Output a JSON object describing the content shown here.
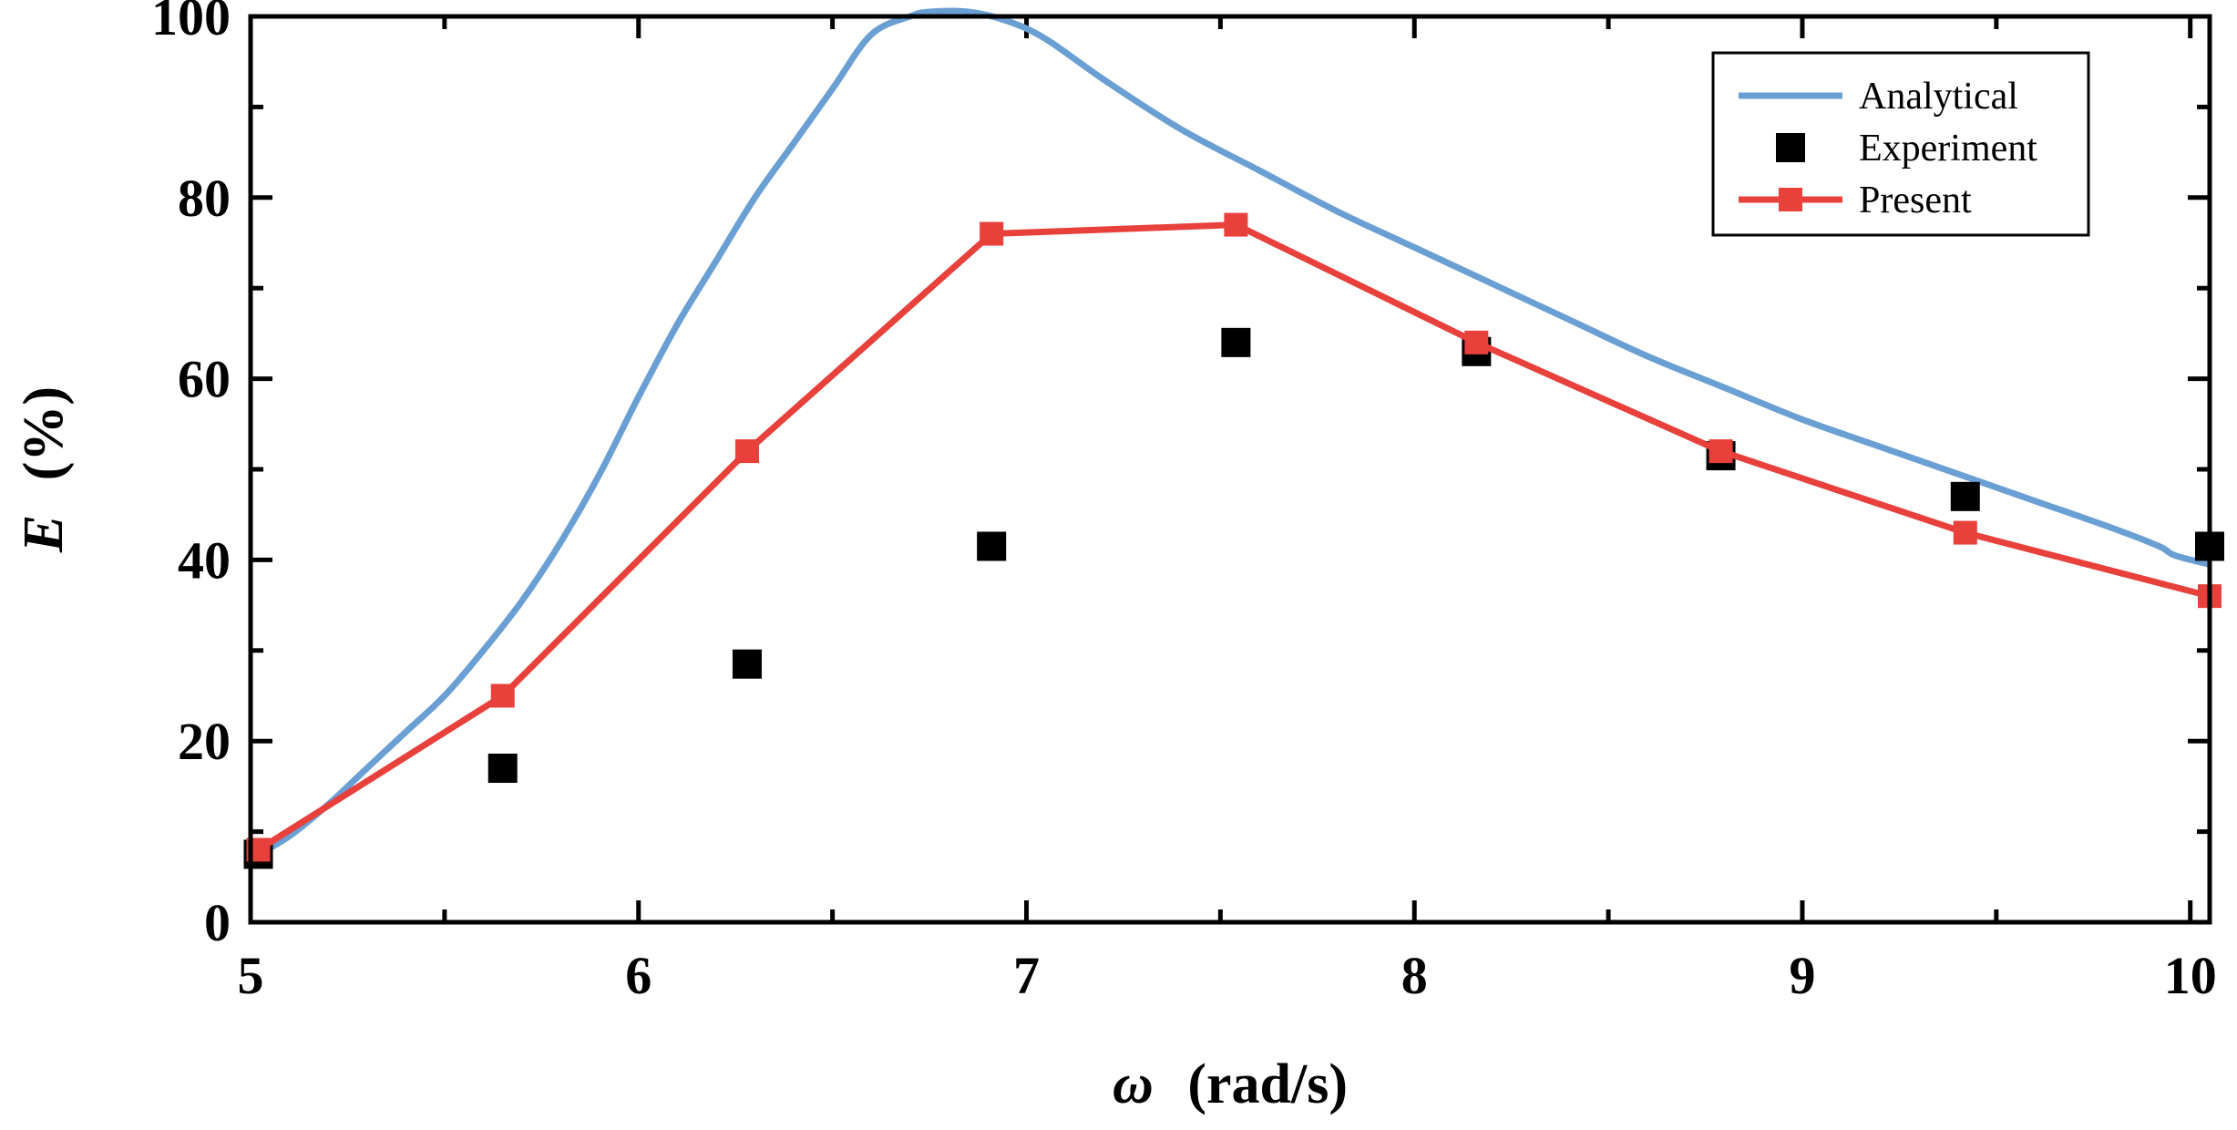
{
  "chart_data": {
    "type": "line",
    "xlabel_symbol": "ω",
    "xlabel_unit": "(rad/s)",
    "ylabel_symbol": "E",
    "ylabel_unit": "(%)",
    "xlim": [
      5,
      10.05
    ],
    "ylim": [
      0,
      100
    ],
    "xticks": [
      5,
      6,
      7,
      8,
      9,
      10
    ],
    "yticks": [
      0,
      20,
      40,
      60,
      80,
      100
    ],
    "grid": false,
    "legend_position": "top-right",
    "colors": {
      "analytical": "#6a9fd4",
      "experiment": "#000000",
      "present": "#e8403a"
    },
    "series": [
      {
        "name": "Analytical",
        "style": "line",
        "x": [
          5.0,
          5.1,
          5.2,
          5.3,
          5.4,
          5.5,
          5.6,
          5.7,
          5.8,
          5.9,
          6.0,
          6.1,
          6.2,
          6.3,
          6.4,
          6.5,
          6.6,
          6.7,
          6.75,
          6.85,
          6.95,
          7.05,
          7.2,
          7.4,
          7.6,
          7.8,
          8.0,
          8.2,
          8.4,
          8.6,
          8.8,
          9.0,
          9.2,
          9.4,
          9.6,
          9.8,
          9.92,
          9.96,
          10.05
        ],
        "y": [
          7,
          9.5,
          13,
          17,
          21,
          25,
          30,
          35.5,
          42,
          49.5,
          58,
          66,
          73,
          80,
          86,
          92,
          98,
          100,
          100.5,
          100.5,
          99.5,
          97.5,
          93,
          87.5,
          83,
          78.5,
          74.5,
          70.5,
          66.5,
          62.5,
          59,
          55.5,
          52.5,
          49.5,
          46.5,
          43.5,
          41.5,
          40.5,
          39.5
        ]
      },
      {
        "name": "Experiment",
        "style": "markers",
        "x": [
          5.02,
          5.65,
          6.28,
          6.91,
          7.54,
          8.16,
          8.79,
          9.42,
          10.05
        ],
        "y": [
          7.5,
          17,
          28.5,
          41.5,
          64,
          63,
          51.5,
          47,
          41.5
        ]
      },
      {
        "name": "Present",
        "style": "line-markers",
        "x": [
          5.02,
          5.65,
          6.28,
          6.91,
          7.54,
          8.16,
          8.79,
          9.42,
          10.05
        ],
        "y": [
          8,
          25,
          52,
          76,
          77,
          64,
          52,
          43,
          36
        ]
      }
    ]
  }
}
